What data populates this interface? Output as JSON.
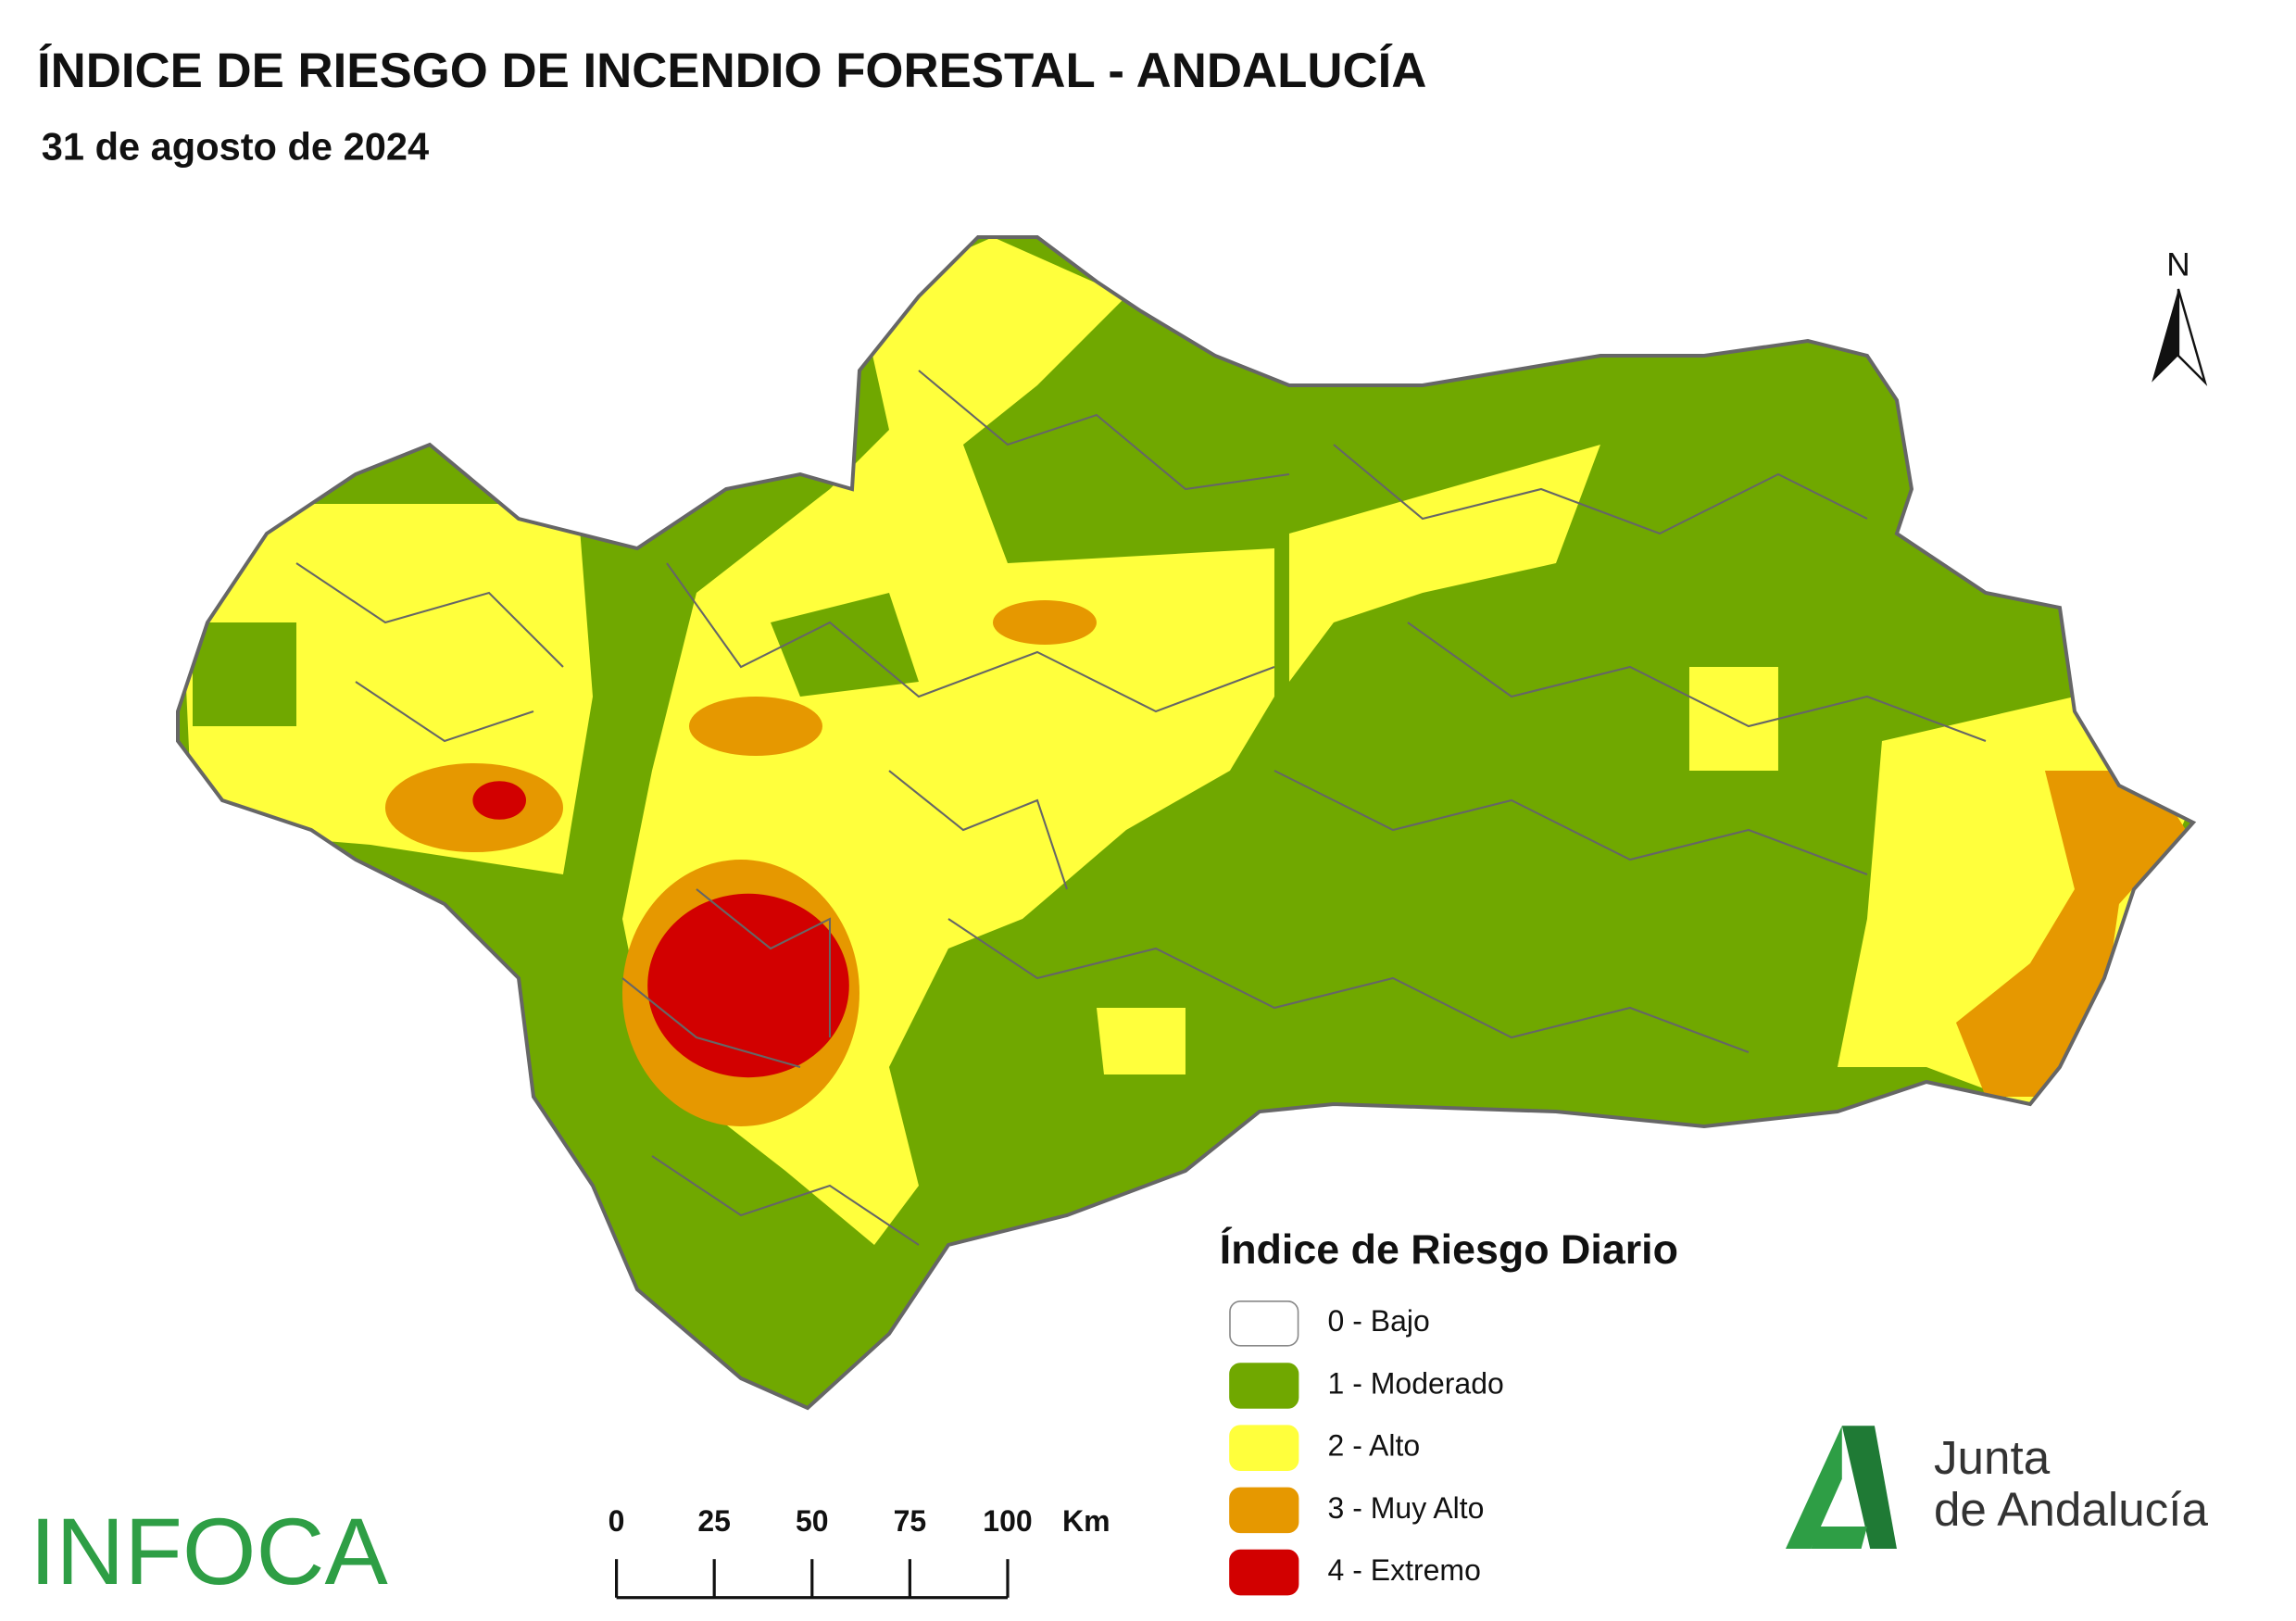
{
  "header": {
    "title": "ÍNDICE DE RIESGO DE INCENDIO FORESTAL - ANDALUCÍA",
    "subtitle": "31 de agosto de 2024"
  },
  "north": "N",
  "legend": {
    "title": "Índice de Riesgo Diario",
    "items": [
      {
        "label": "0 - Bajo",
        "color": "#ffffff"
      },
      {
        "label": "1 - Moderado",
        "color": "#70a800"
      },
      {
        "label": "2 - Alto",
        "color": "#ffff3c"
      },
      {
        "label": "3 - Muy Alto",
        "color": "#e69800"
      },
      {
        "label": "4 - Extremo",
        "color": "#d20000"
      }
    ]
  },
  "scale_bar": {
    "labels": [
      "0",
      "25",
      "50",
      "75",
      "100"
    ],
    "unit": "Km"
  },
  "logos": {
    "infoca": "INFOCA",
    "junta_line1": "Junta",
    "junta_line2": "de Andalucía"
  }
}
